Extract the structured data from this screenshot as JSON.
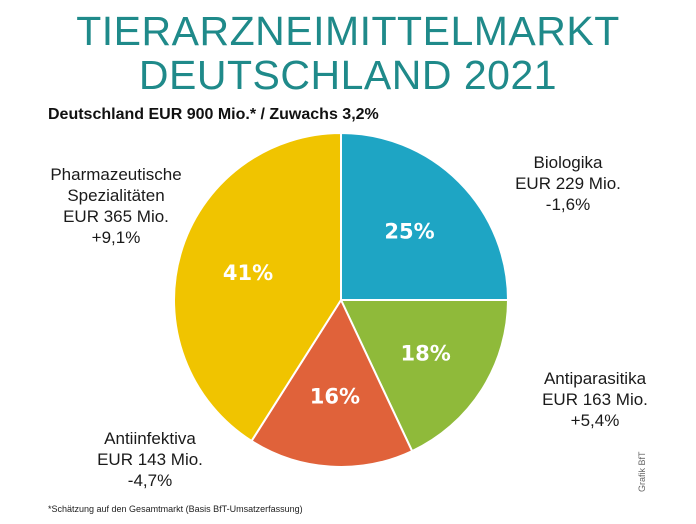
{
  "chart_data": {
    "type": "pie",
    "title_line1": "TIERARZNEIMITTELMARKT",
    "title_line2": "DEUTSCHLAND 2021",
    "subtitle": "Deutschland EUR 900 Mio.* / Zuwachs 3,2%",
    "slices": [
      {
        "value": 25,
        "pct_label": "25%",
        "color": "#1ea5c4",
        "label_lines": [
          "Biologika",
          "EUR 229 Mio.",
          "-1,6%"
        ]
      },
      {
        "value": 18,
        "pct_label": "18%",
        "color": "#8fba3a",
        "label_lines": [
          "Antiparasitika",
          "EUR 163 Mio.",
          "+5,4%"
        ]
      },
      {
        "value": 16,
        "pct_label": "16%",
        "color": "#e0623a",
        "label_lines": [
          "Antiinfektiva",
          "EUR 143 Mio.",
          "-4,7%"
        ]
      },
      {
        "value": 41,
        "pct_label": "41%",
        "color": "#f0c400",
        "label_lines": [
          "Pharmazeutische",
          "Spezialitäten",
          "EUR 365 Mio.",
          "+9,1%"
        ]
      }
    ],
    "footnote": "*Schätzung auf den Gesamtmarkt (Basis BfT-Umsatzerfassung)",
    "credit": "Grafik BfT"
  }
}
